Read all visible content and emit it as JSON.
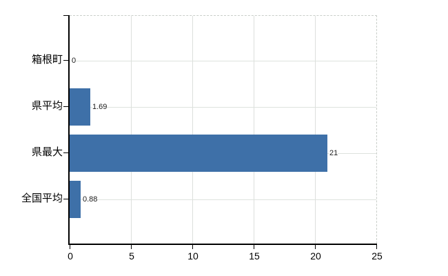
{
  "chart_data": {
    "type": "bar",
    "orientation": "horizontal",
    "title": "",
    "categories": [
      "箱根町",
      "県平均",
      "県最大",
      "全国平均"
    ],
    "values": [
      0,
      1.69,
      21,
      0.88
    ],
    "value_labels": [
      "0",
      "1.69",
      "21",
      "0.88"
    ],
    "x_ticks": [
      "0",
      "5",
      "10",
      "15",
      "20",
      "25"
    ],
    "x_tick_values": [
      0,
      5,
      10,
      15,
      20,
      25
    ],
    "xlim": [
      0,
      25
    ],
    "grid": true,
    "legend": false,
    "colors": {
      "bar": "#3e70a8",
      "grid_vertical": "#dcdfdc",
      "grid_horizontal": "#dde2dd",
      "plot_border_dashed": "#c9cec9",
      "axis": "#000000",
      "label": "#000000",
      "background": "#ffffff"
    }
  }
}
